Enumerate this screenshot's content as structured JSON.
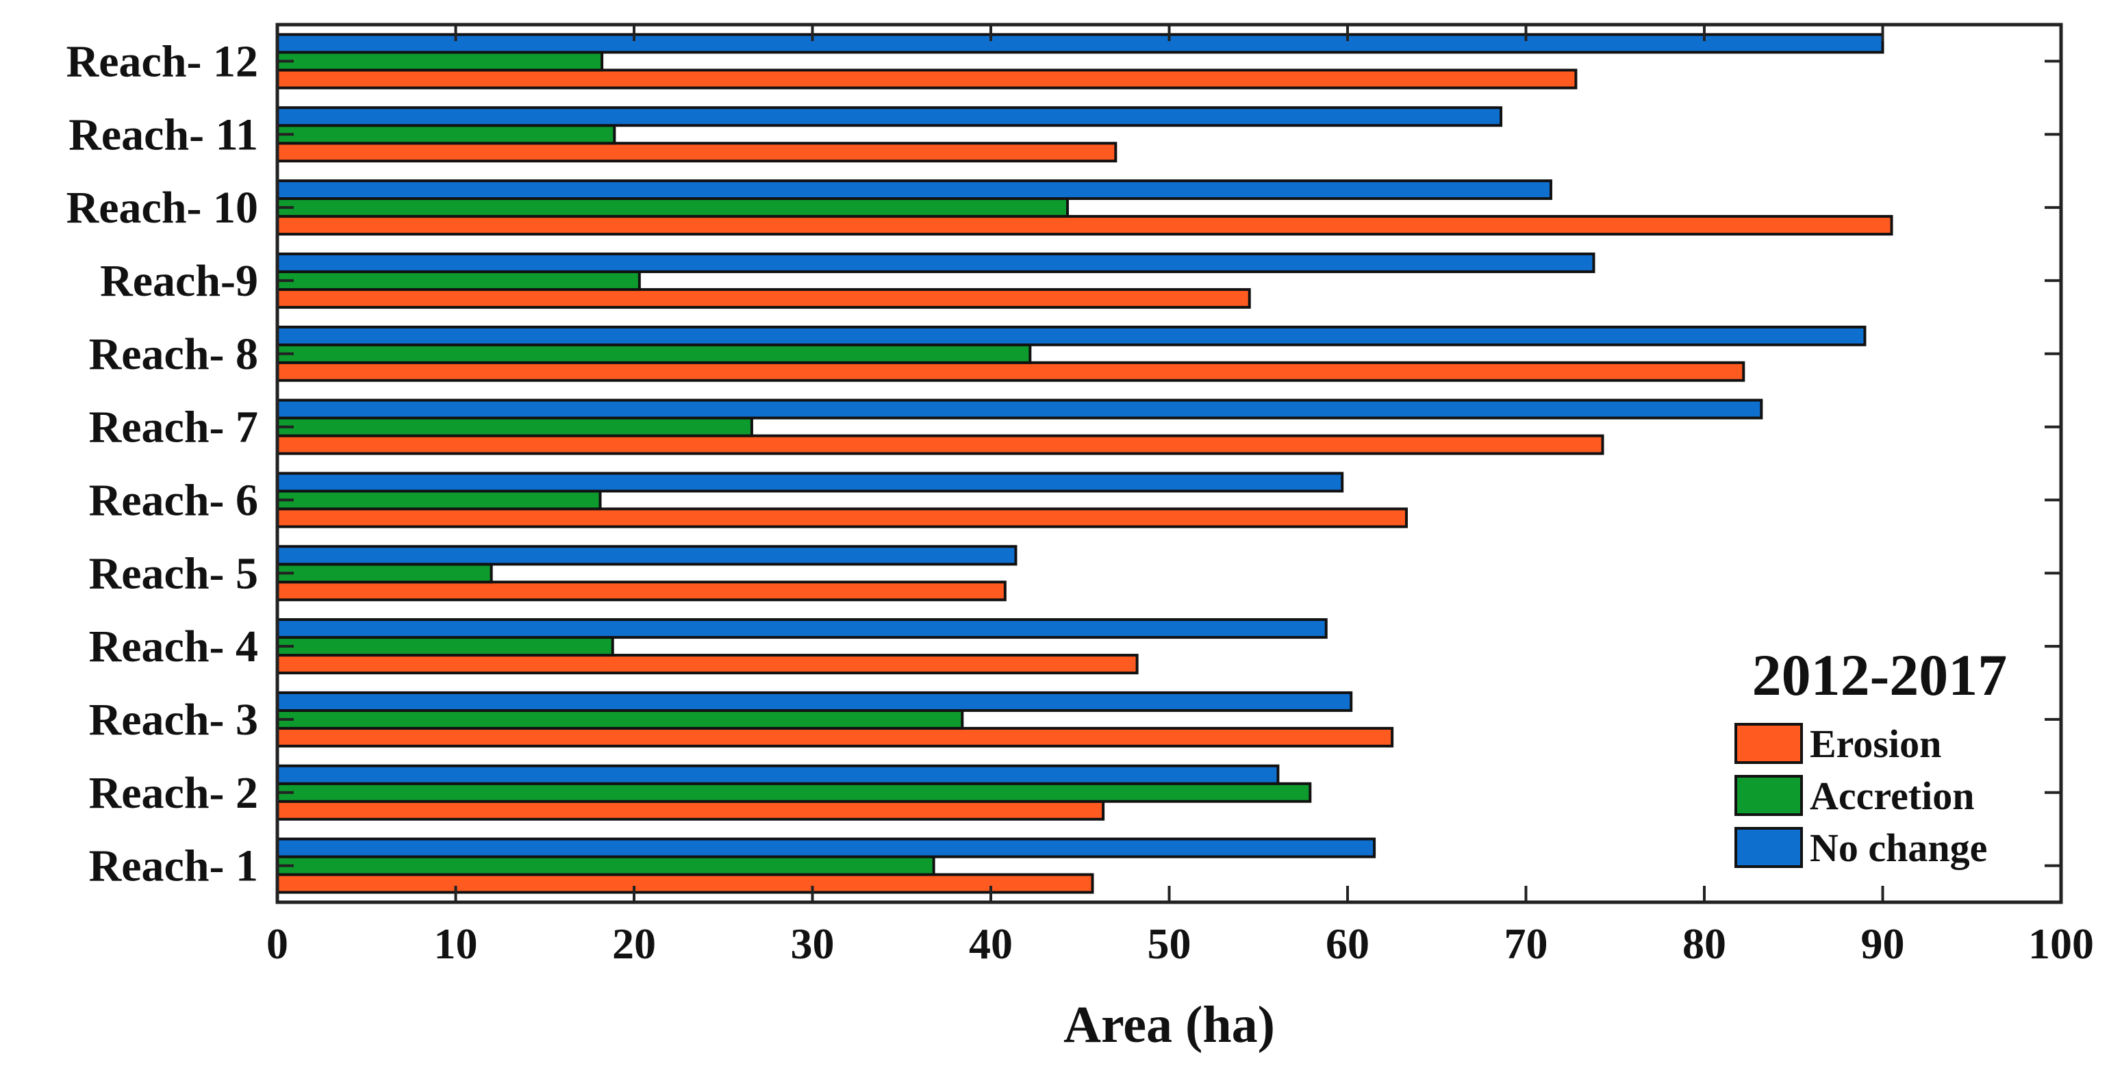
{
  "chart_data": {
    "type": "bar",
    "orientation": "horizontal",
    "categories": [
      "Reach- 1",
      "Reach- 2",
      "Reach- 3",
      "Reach- 4",
      "Reach- 5",
      "Reach- 6",
      "Reach- 7",
      "Reach- 8",
      "Reach-9",
      "Reach- 10",
      "Reach- 11",
      "Reach- 12"
    ],
    "series": [
      {
        "name": "Erosion",
        "color": "#ff5a1f",
        "values": [
          45.7,
          46.3,
          62.5,
          48.2,
          40.8,
          63.3,
          74.3,
          82.2,
          54.5,
          90.5,
          47.0,
          72.8
        ]
      },
      {
        "name": "Accretion",
        "color": "#0e9b2e",
        "values": [
          36.8,
          57.9,
          38.4,
          18.8,
          12.0,
          18.1,
          26.6,
          42.2,
          20.3,
          44.3,
          18.9,
          18.2
        ]
      },
      {
        "name": "No change",
        "color": "#0f6fcf",
        "values": [
          61.5,
          56.1,
          60.2,
          58.8,
          41.4,
          59.7,
          83.2,
          89.0,
          73.8,
          71.4,
          68.6,
          90.0
        ]
      }
    ],
    "xlabel": "Area (ha)",
    "ylabel": "",
    "xlim": [
      0,
      100
    ],
    "xticks": [
      "0",
      "10",
      "20",
      "30",
      "40",
      "50",
      "60",
      "70",
      "80",
      "90",
      "100"
    ],
    "legend_title": "2012-2017",
    "legend_position": "bottom-right",
    "grid": false
  }
}
